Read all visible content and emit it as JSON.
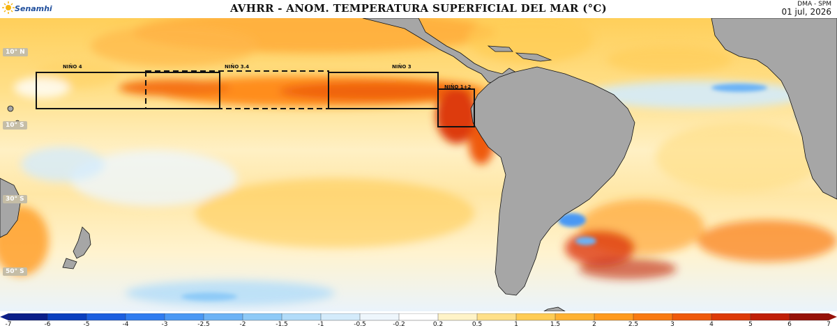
{
  "header": {
    "logo_text": "Senamhi",
    "title": "AVHRR - ANOM. TEMPERATURA SUPERFICIAL DEL MAR (°C)",
    "source": "DMA - SPM",
    "date": "01 jul, 2026"
  },
  "map": {
    "latitude_labels": [
      "10° N",
      "10° S",
      "30° S",
      "50° S"
    ],
    "regions": [
      {
        "name": "NIÑO 4",
        "style": "solid"
      },
      {
        "name": "NIÑO 3.4",
        "style": "dashed"
      },
      {
        "name": "NIÑO 3",
        "style": "solid"
      },
      {
        "name": "NIÑO 1+2",
        "style": "solid"
      }
    ],
    "land_color": "#a6a6a6",
    "coast_color": "#111111"
  },
  "colorbar": {
    "ticks": [
      "-7",
      "-6",
      "-5",
      "-4",
      "-3",
      "-2.5",
      "-2",
      "-1.5",
      "-1",
      "-0.5",
      "-0.2",
      "0.2",
      "0.5",
      "1",
      "1.5",
      "2",
      "2.5",
      "3",
      "4",
      "5",
      "6",
      "7"
    ],
    "colors": [
      "#0b1f8a",
      "#0a3fbf",
      "#1c5fe0",
      "#2f7cf0",
      "#4a98f4",
      "#6cb3f6",
      "#8ecaf7",
      "#b2dcf9",
      "#d4ebfb",
      "#eef6fc",
      "#ffffff",
      "#fff3c8",
      "#ffe08a",
      "#ffcc55",
      "#ffb233",
      "#ff9a1f",
      "#f97a12",
      "#ef5a0c",
      "#dd3a09",
      "#c01f08",
      "#961109"
    ]
  }
}
